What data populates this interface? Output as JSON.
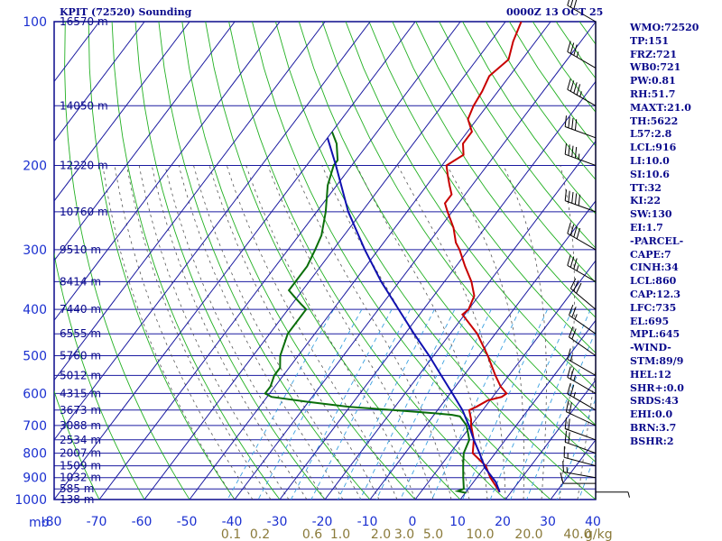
{
  "header": {
    "station": "KPIT (72520) Sounding",
    "time": "0000Z 13 OCT 25"
  },
  "stats": [
    "WMO:72520",
    "TP:151",
    "FRZ:721",
    "WB0:721",
    "PW:0.81",
    "RH:51.7",
    "MAXT:21.0",
    "TH:5622",
    "L57:2.8",
    "LCL:916",
    "LI:10.0",
    "SI:10.6",
    "TT:32",
    "KI:22",
    "SW:130",
    "EI:1.7",
    "-PARCEL-",
    "CAPE:7",
    "CINH:34",
    "LCL:860",
    "CAP:12.3",
    "LFC:735",
    "EL:695",
    "MPL:645",
    "-WIND-",
    "STM:89/9",
    "HEL:12",
    "SHR+:0.0",
    "SRDS:43",
    "EHI:0.0",
    "BRN:3.7",
    "BSHR:2"
  ],
  "colors": {
    "frame": "#0a0a8c",
    "grid": "#1a1aa0",
    "dry_adiabat": "#22b022",
    "moist_adiabat": "#555555",
    "mixing_ratio": "#3aa0e0",
    "temperature": "#c80000",
    "dewpoint": "#0a6e0a",
    "parcel": "#1010b0"
  },
  "chart_data": {
    "type": "line",
    "pressure_axis": {
      "unit_label": "mb",
      "ticks": [
        100,
        200,
        300,
        400,
        500,
        600,
        700,
        800,
        900,
        1000
      ],
      "range": [
        100,
        1000
      ],
      "scale": "log"
    },
    "temperature_axis": {
      "ticks": [
        "-80",
        "-70",
        "-60",
        "-50",
        "-40",
        "-30",
        "-20",
        "-10",
        "0",
        "10",
        "20",
        "30",
        "40"
      ],
      "range": [
        -80,
        40
      ],
      "skewed": true
    },
    "mixing_ratio_axis": {
      "labels": [
        "0.1",
        "0.2",
        "0.6",
        "1.0",
        "2.0",
        "3.0",
        "5.0",
        "10.0",
        "20.0",
        "40.0"
      ],
      "unit": "g/kg"
    },
    "height_labels": [
      {
        "p": 100,
        "text": "16570 m"
      },
      {
        "p": 150,
        "text": "14050 m"
      },
      {
        "p": 200,
        "text": "12220 m"
      },
      {
        "p": 250,
        "text": "10760 m"
      },
      {
        "p": 300,
        "text": "9510 m"
      },
      {
        "p": 350,
        "text": "8414 m"
      },
      {
        "p": 400,
        "text": "7440 m"
      },
      {
        "p": 450,
        "text": "6555 m"
      },
      {
        "p": 500,
        "text": "5760 m"
      },
      {
        "p": 550,
        "text": "5012 m"
      },
      {
        "p": 600,
        "text": "4315 m"
      },
      {
        "p": 650,
        "text": "3673 m"
      },
      {
        "p": 700,
        "text": "3088 m"
      },
      {
        "p": 750,
        "text": "2534 m"
      },
      {
        "p": 800,
        "text": "2007 m"
      },
      {
        "p": 850,
        "text": "1509 m"
      },
      {
        "p": 900,
        "text": "1032 m"
      },
      {
        "p": 950,
        "text": "585 m"
      },
      {
        "p": 1000,
        "text": "138 m"
      }
    ],
    "series": [
      {
        "key": "temperature",
        "points": [
          [
            100,
            -56.5
          ],
          [
            110,
            -55
          ],
          [
            120,
            -53
          ],
          [
            130,
            -54.5
          ],
          [
            140,
            -53.5
          ],
          [
            150,
            -53
          ],
          [
            160,
            -52
          ],
          [
            170,
            -49
          ],
          [
            180,
            -49
          ],
          [
            190,
            -47
          ],
          [
            200,
            -49
          ],
          [
            210,
            -47
          ],
          [
            220,
            -45
          ],
          [
            230,
            -43
          ],
          [
            240,
            -43
          ],
          [
            250,
            -41
          ],
          [
            270,
            -37
          ],
          [
            290,
            -34
          ],
          [
            300,
            -32
          ],
          [
            325,
            -28
          ],
          [
            350,
            -24
          ],
          [
            375,
            -21
          ],
          [
            400,
            -20
          ],
          [
            410,
            -20.5
          ],
          [
            450,
            -14
          ],
          [
            500,
            -8
          ],
          [
            550,
            -3
          ],
          [
            580,
            0
          ],
          [
            600,
            2.5
          ],
          [
            610,
            2
          ],
          [
            620,
            -0.5
          ],
          [
            640,
            -2
          ],
          [
            650,
            -3
          ],
          [
            680,
            -1
          ],
          [
            700,
            0
          ],
          [
            750,
            3
          ],
          [
            800,
            5
          ],
          [
            850,
            10
          ],
          [
            900,
            13
          ],
          [
            950,
            16.5
          ],
          [
            965,
            17.5
          ]
        ]
      },
      {
        "key": "dewpoint",
        "points": [
          [
            170,
            -80
          ],
          [
            180,
            -77
          ],
          [
            195,
            -74
          ],
          [
            200,
            -74
          ],
          [
            220,
            -72
          ],
          [
            250,
            -68
          ],
          [
            280,
            -65
          ],
          [
            300,
            -64
          ],
          [
            325,
            -63
          ],
          [
            350,
            -63
          ],
          [
            365,
            -63
          ],
          [
            380,
            -60
          ],
          [
            390,
            -58
          ],
          [
            395,
            -57
          ],
          [
            400,
            -56
          ],
          [
            450,
            -56
          ],
          [
            500,
            -54
          ],
          [
            530,
            -52
          ],
          [
            550,
            -52
          ],
          [
            580,
            -51
          ],
          [
            600,
            -51
          ],
          [
            610,
            -49
          ],
          [
            625,
            -40
          ],
          [
            640,
            -30
          ],
          [
            650,
            -20
          ],
          [
            660,
            -10
          ],
          [
            665,
            -6
          ],
          [
            670,
            -4
          ],
          [
            700,
            -1
          ],
          [
            750,
            2
          ],
          [
            800,
            3
          ],
          [
            850,
            5
          ],
          [
            900,
            7
          ],
          [
            950,
            9
          ],
          [
            960,
            8
          ],
          [
            968,
            10
          ],
          [
            970,
            10
          ]
        ]
      },
      {
        "key": "parcel",
        "points": [
          [
            965,
            17.5
          ],
          [
            920,
            15
          ],
          [
            860,
            10.3
          ],
          [
            800,
            6.5
          ],
          [
            750,
            3
          ],
          [
            700,
            -0.5
          ],
          [
            650,
            -4.5
          ],
          [
            600,
            -9.5
          ],
          [
            550,
            -15
          ],
          [
            500,
            -21
          ],
          [
            450,
            -28
          ],
          [
            400,
            -35.5
          ],
          [
            350,
            -44
          ],
          [
            300,
            -53
          ],
          [
            250,
            -63
          ],
          [
            200,
            -73.5
          ],
          [
            175,
            -80
          ]
        ]
      }
    ],
    "wind_barbs": [
      {
        "p": 965,
        "dir": 90,
        "spd": 5
      },
      {
        "p": 925,
        "dir": 270,
        "spd": 10
      },
      {
        "p": 900,
        "dir": 280,
        "spd": 15
      },
      {
        "p": 850,
        "dir": 285,
        "spd": 15
      },
      {
        "p": 800,
        "dir": 290,
        "spd": 20
      },
      {
        "p": 750,
        "dir": 290,
        "spd": 20
      },
      {
        "p": 700,
        "dir": 295,
        "spd": 20
      },
      {
        "p": 650,
        "dir": 300,
        "spd": 25
      },
      {
        "p": 600,
        "dir": 300,
        "spd": 25
      },
      {
        "p": 550,
        "dir": 300,
        "spd": 15
      },
      {
        "p": 500,
        "dir": 305,
        "spd": 20
      },
      {
        "p": 450,
        "dir": 305,
        "spd": 25
      },
      {
        "p": 400,
        "dir": 310,
        "spd": 30
      },
      {
        "p": 350,
        "dir": 300,
        "spd": 35
      },
      {
        "p": 300,
        "dir": 300,
        "spd": 40
      },
      {
        "p": 250,
        "dir": 290,
        "spd": 50
      },
      {
        "p": 200,
        "dir": 290,
        "spd": 45
      },
      {
        "p": 175,
        "dir": 290,
        "spd": 40
      },
      {
        "p": 150,
        "dir": 300,
        "spd": 45
      },
      {
        "p": 125,
        "dir": 300,
        "spd": 35
      },
      {
        "p": 100,
        "dir": 300,
        "spd": 30
      }
    ]
  }
}
